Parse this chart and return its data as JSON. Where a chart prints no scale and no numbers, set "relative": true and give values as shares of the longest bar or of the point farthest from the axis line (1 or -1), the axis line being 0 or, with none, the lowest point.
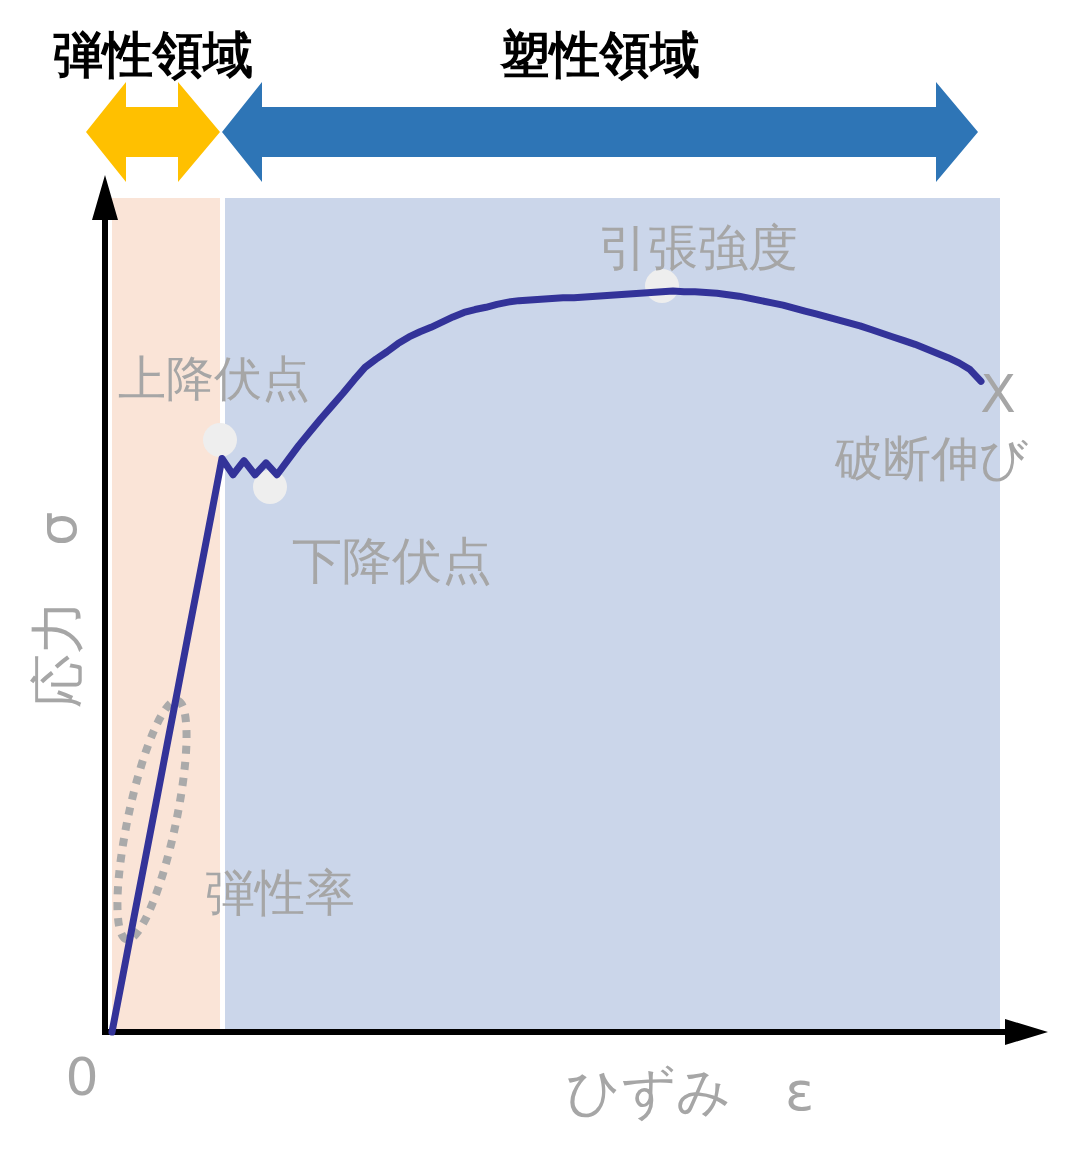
{
  "chart_data": {
    "type": "line",
    "relative": true,
    "xlabel": "ひずみ　ε",
    "ylabel": "応力　σ",
    "categories": [
      null,
      null,
      null,
      null,
      null,
      null,
      null,
      null,
      null,
      null,
      null,
      null,
      null,
      null,
      null,
      null,
      null,
      null,
      null,
      null,
      null,
      null,
      null,
      null,
      null,
      null,
      null,
      null,
      null,
      null,
      null,
      null,
      null,
      null,
      null,
      null,
      null,
      null,
      null,
      null,
      null,
      null,
      null,
      null,
      null,
      null,
      null,
      null,
      null,
      null,
      null,
      null,
      null,
      null,
      null,
      null,
      null,
      null,
      null,
      null,
      null,
      null,
      null,
      null,
      null,
      null,
      null,
      null,
      null,
      null,
      null,
      null,
      null,
      null,
      null,
      null,
      null,
      null,
      null,
      null
    ],
    "series": [
      {
        "color": "#333399",
        "values": [
          0,
          0.077,
          0.155,
          0.232,
          0.309,
          0.387,
          0.464,
          0.542,
          0.619,
          0.696,
          0.774,
          0.752,
          0.771,
          0.752,
          0.768,
          0.752,
          0.772,
          0.792,
          0.81,
          0.828,
          0.845,
          0.862,
          0.88,
          0.897,
          0.908,
          0.918,
          0.929,
          0.938,
          0.945,
          0.951,
          0.958,
          0.965,
          0.971,
          0.975,
          0.978,
          0.982,
          0.985,
          0.987,
          0.988,
          0.989,
          0.99,
          0.991,
          0.991,
          0.992,
          0.993,
          0.994,
          0.995,
          0.996,
          0.997,
          0.998,
          0.999,
          1,
          0.999,
          0.999,
          0.998,
          0.997,
          0.995,
          0.993,
          0.99,
          0.987,
          0.984,
          0.981,
          0.977,
          0.973,
          0.969,
          0.965,
          0.961,
          0.957,
          0.953,
          0.948,
          0.943,
          0.938,
          0.933,
          0.928,
          0.922,
          0.916,
          0.91,
          0.903,
          0.894,
          0.878
        ]
      }
    ],
    "annotations": [
      "上降伏点",
      "下降伏点",
      "引張強度",
      "X",
      "破断伸び",
      "弾性率",
      "0",
      "弾性領域",
      "塑性領域"
    ]
  }
}
